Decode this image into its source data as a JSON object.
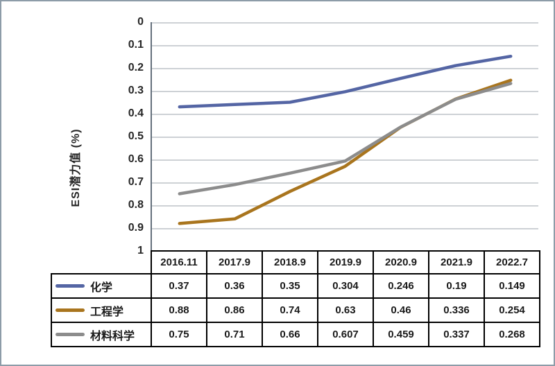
{
  "frame": {
    "background": "#ffffff",
    "border_color": "#8d9ca8"
  },
  "chart_data": {
    "type": "line",
    "title": "",
    "xlabel": "",
    "ylabel": "ESI潜力值 (%)",
    "categories": [
      "2016.11",
      "2017.9",
      "2018.9",
      "2019.9",
      "2020.9",
      "2021.9",
      "2022.7"
    ],
    "series": [
      {
        "name": "化学",
        "color": "#5465a4",
        "values": [
          0.37,
          0.36,
          0.35,
          0.304,
          0.246,
          0.19,
          0.149
        ]
      },
      {
        "name": "工程学",
        "color": "#a9751e",
        "values": [
          0.88,
          0.86,
          0.74,
          0.63,
          0.46,
          0.336,
          0.254
        ]
      },
      {
        "name": "材料科学",
        "color": "#8c8c8c",
        "values": [
          0.75,
          0.71,
          0.66,
          0.607,
          0.459,
          0.337,
          0.268
        ]
      }
    ],
    "y_axis": {
      "min": 0,
      "max": 1,
      "step": 0.1,
      "inverted": true,
      "tick_labels": [
        "0",
        "0.1",
        "0.2",
        "0.3",
        "0.4",
        "0.5",
        "0.6",
        "0.7",
        "0.8",
        "0.9",
        "1"
      ]
    },
    "grid": true,
    "gridline_color": "#cdd1d5",
    "legend_position": "data-table-left",
    "data_table_shown": true
  }
}
